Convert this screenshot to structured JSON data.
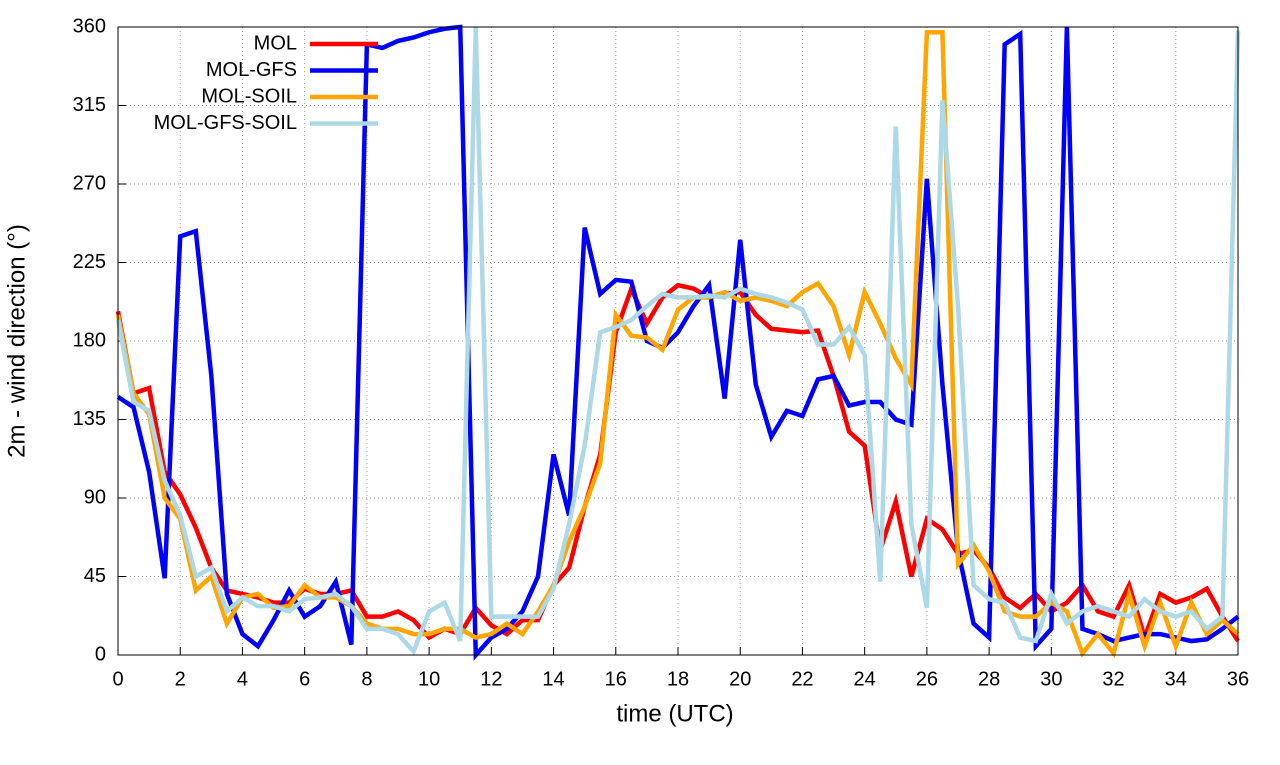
{
  "chart_data": {
    "type": "line",
    "x_label": "time (UTC)",
    "y_label": "2m - wind direction (°)",
    "x": [
      0,
      0.5,
      1,
      1.5,
      2,
      2.5,
      3,
      3.5,
      4,
      4.5,
      5,
      5.5,
      6,
      6.5,
      7,
      7.5,
      8,
      8.5,
      9,
      9.5,
      10,
      10.5,
      11,
      11.5,
      12,
      12.5,
      13,
      13.5,
      14,
      14.5,
      15,
      15.5,
      16,
      16.5,
      17,
      17.5,
      18,
      18.5,
      19,
      19.5,
      20,
      20.5,
      21,
      21.5,
      22,
      22.5,
      23,
      23.5,
      24,
      24.5,
      25,
      25.5,
      26,
      26.5,
      27,
      27.5,
      28,
      28.5,
      29,
      29.5,
      30,
      30.5,
      31,
      31.5,
      32,
      32.5,
      33,
      33.5,
      34,
      34.5,
      35,
      35.5,
      36
    ],
    "series": [
      {
        "name": "MOL",
        "color": "#ff0000",
        "values": [
          197,
          150,
          153,
          105,
          92,
          73,
          50,
          37,
          35,
          33,
          30,
          30,
          38,
          35,
          35,
          37,
          22,
          22,
          25,
          20,
          10,
          15,
          12,
          27,
          17,
          12,
          20,
          20,
          40,
          50,
          85,
          115,
          185,
          210,
          190,
          205,
          212,
          210,
          205,
          207,
          208,
          195,
          187,
          186,
          185,
          186,
          160,
          128,
          120,
          60,
          88,
          45,
          78,
          72,
          58,
          60,
          50,
          33,
          27,
          35,
          25,
          30,
          40,
          25,
          22,
          40,
          10,
          35,
          30,
          33,
          38,
          22,
          8
        ]
      },
      {
        "name": "MOL-GFS",
        "color": "#0000ff",
        "values": [
          148,
          142,
          105,
          44,
          240,
          243,
          160,
          35,
          12,
          5,
          20,
          37,
          22,
          28,
          42,
          6,
          350,
          348,
          352,
          354,
          357,
          359,
          360,
          0,
          10,
          15,
          25,
          45,
          115,
          80,
          245,
          207,
          215,
          214,
          180,
          176,
          185,
          200,
          212,
          147,
          238,
          155,
          125,
          140,
          137,
          158,
          160,
          143,
          145,
          145,
          135,
          132,
          273,
          155,
          60,
          18,
          10,
          350,
          356,
          5,
          15,
          360,
          15,
          12,
          8,
          10,
          12,
          12,
          10,
          8,
          9,
          15,
          22
        ]
      },
      {
        "name": "MOL-SOIL",
        "color": "#ffa500",
        "values": [
          195,
          150,
          138,
          90,
          78,
          37,
          45,
          18,
          33,
          35,
          27,
          28,
          40,
          33,
          33,
          28,
          18,
          15,
          15,
          12,
          12,
          15,
          15,
          10,
          12,
          18,
          12,
          25,
          40,
          65,
          85,
          110,
          195,
          183,
          182,
          175,
          198,
          205,
          205,
          208,
          203,
          205,
          203,
          200,
          208,
          213,
          200,
          172,
          208,
          190,
          170,
          155,
          357,
          357,
          52,
          63,
          48,
          25,
          22,
          22,
          30,
          25,
          1,
          12,
          1,
          35,
          5,
          30,
          5,
          30,
          12,
          20,
          12
        ]
      },
      {
        "name": "MOL-GFS-SOIL",
        "color": "#add8e6",
        "values": [
          192,
          145,
          140,
          100,
          80,
          45,
          50,
          25,
          33,
          28,
          28,
          25,
          32,
          33,
          35,
          28,
          15,
          15,
          12,
          2,
          25,
          30,
          8,
          360,
          22,
          22,
          22,
          22,
          38,
          75,
          120,
          185,
          188,
          192,
          200,
          207,
          205,
          205,
          206,
          205,
          210,
          207,
          205,
          202,
          198,
          178,
          178,
          188,
          172,
          42,
          303,
          75,
          27,
          318,
          200,
          40,
          32,
          30,
          10,
          8,
          35,
          18,
          25,
          28,
          25,
          22,
          32,
          25,
          22,
          25,
          15,
          22,
          358
        ]
      }
    ],
    "xlim": [
      0,
      36
    ],
    "xticks": [
      0,
      2,
      4,
      6,
      8,
      10,
      12,
      14,
      16,
      18,
      20,
      22,
      24,
      26,
      28,
      30,
      32,
      34,
      36
    ],
    "ylim": [
      0,
      360
    ],
    "yticks": [
      0,
      45,
      90,
      135,
      180,
      225,
      270,
      315,
      360
    ],
    "grid": true,
    "legend": "upper left"
  }
}
